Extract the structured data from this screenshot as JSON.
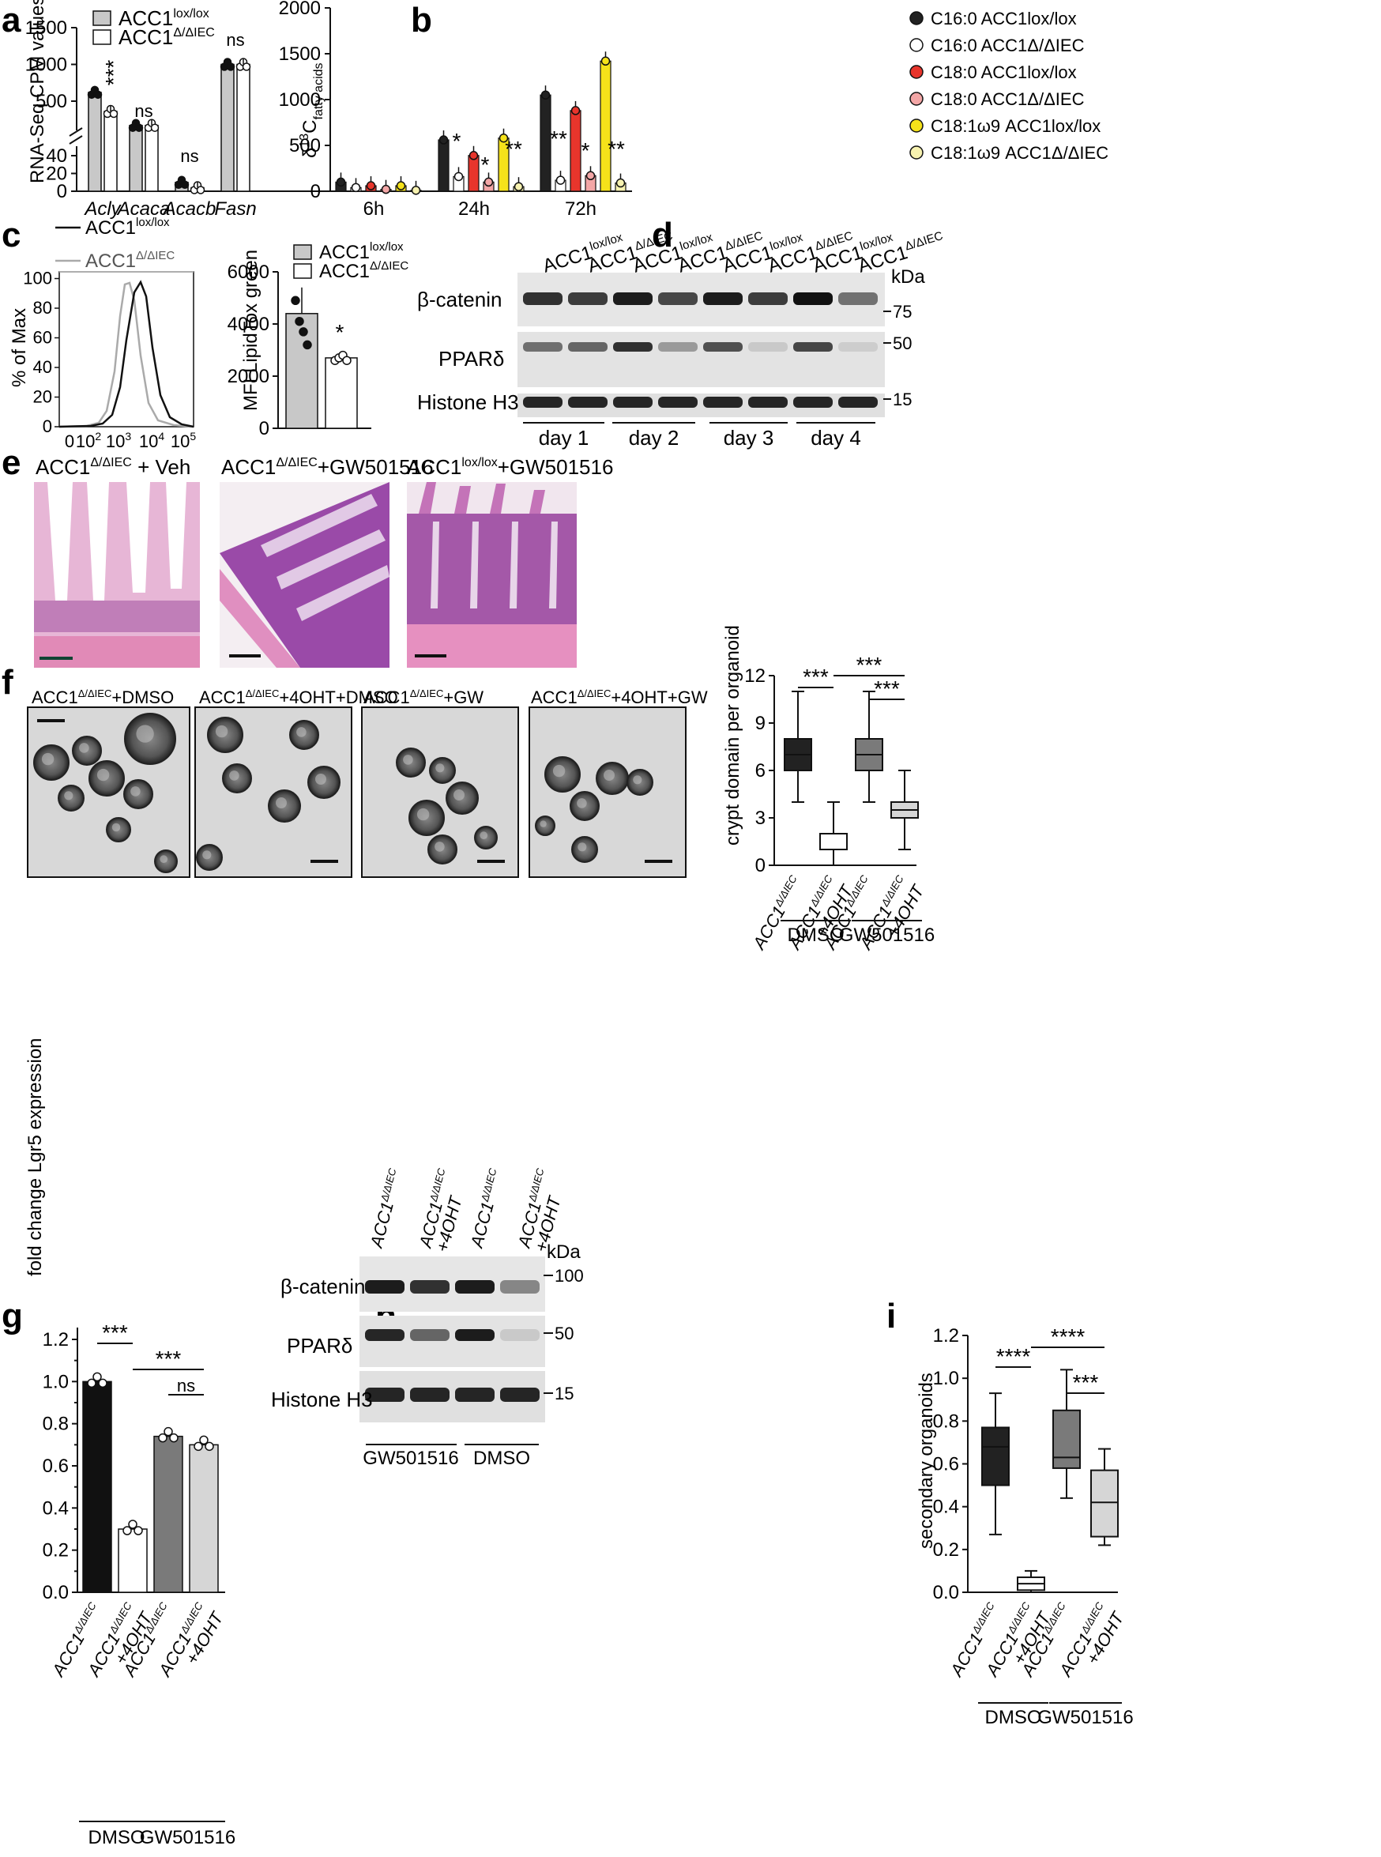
{
  "panels": {
    "a": "a",
    "b": "b",
    "c": "c",
    "d": "d",
    "e": "e",
    "f": "f",
    "g": "g",
    "h": "h",
    "i": "i"
  },
  "colors": {
    "gray": "#c8c8c8",
    "darkgray": "#7a7a7a",
    "black": "#1a1a1a",
    "red": "#e8352c",
    "pink": "#f3a6a6",
    "yellow": "#f5e21a",
    "lightyellow": "#f7f2b0",
    "he_pink": "#d87ab5",
    "he_purple": "#6a2a8c",
    "brightfield": "#d8d8d8"
  },
  "legend_a": {
    "lox": {
      "base": "ACC1",
      "sup": "lox/lox"
    },
    "del": {
      "base": "ACC1",
      "sup": "Δ/ΔIEC"
    }
  },
  "chart_data": [
    {
      "id": "a",
      "type": "bar",
      "ylabel": "RNA-Seq CPM values",
      "categories": [
        "Acly",
        "Acaca",
        "Acacb",
        "Fasn"
      ],
      "series": [
        {
          "name": "ACC1lox/lox",
          "values": [
            620,
            170,
            10,
            1000
          ]
        },
        {
          "name": "ACC1Δ/ΔIEC",
          "values": [
            360,
            170,
            4,
            1000
          ]
        }
      ],
      "y_ticks_upper": [
        "500",
        "1000",
        "1500"
      ],
      "y_ticks_lower": [
        "0",
        "20",
        "40"
      ],
      "annotations": [
        "***",
        "ns",
        "ns",
        "ns"
      ]
    },
    {
      "id": "b",
      "type": "bar",
      "ylabel": "δ13C fatty acids",
      "categories": [
        "6h",
        "24h",
        "72h"
      ],
      "series": [
        {
          "name": "C16:0 ACC1lox/lox",
          "values": [
            100,
            560,
            1050
          ]
        },
        {
          "name": "C16:0 ACC1Δ/ΔIEC",
          "values": [
            40,
            160,
            120
          ]
        },
        {
          "name": "C18:0 ACC1lox/lox",
          "values": [
            60,
            390,
            880
          ]
        },
        {
          "name": "C18:0 ACC1Δ/ΔIEC",
          "values": [
            20,
            100,
            170
          ]
        },
        {
          "name": "C18:1ω9 ACC1lox/lox",
          "values": [
            60,
            580,
            1420
          ]
        },
        {
          "name": "C18:1ω9 ACC1Δ/ΔIEC",
          "values": [
            10,
            50,
            90
          ]
        }
      ],
      "y_ticks": [
        "0",
        "500",
        "1000",
        "1500",
        "2000"
      ],
      "ylim": [
        0,
        2000
      ],
      "annotations_24h": [
        "*",
        "*",
        "**"
      ],
      "annotations_72h": [
        "**",
        "*",
        "**"
      ]
    },
    {
      "id": "c_right",
      "type": "bar",
      "ylabel": "MFI LipidTox green",
      "series": [
        {
          "name": "ACC1lox/lox",
          "values": [
            4400
          ]
        },
        {
          "name": "ACC1Δ/ΔIEC",
          "values": [
            2700
          ]
        }
      ],
      "y_ticks": [
        "0",
        "2000",
        "4000",
        "6000"
      ],
      "ylim": [
        0,
        6000
      ],
      "annotation": "*"
    },
    {
      "id": "f_right",
      "type": "box",
      "ylabel": "crypt domain per organoid",
      "categories": [
        "ACC1Δ/ΔIEC",
        "ACC1Δ/ΔIEC +4OHT",
        "ACC1Δ/ΔIEC",
        "ACC1Δ/ΔIEC +4OHT"
      ],
      "boxes": [
        {
          "min": 4,
          "q1": 6,
          "median": 7,
          "q3": 8,
          "max": 11
        },
        {
          "min": 0,
          "q1": 1,
          "median": 1,
          "q3": 2,
          "max": 4
        },
        {
          "min": 4,
          "q1": 6,
          "median": 7,
          "q3": 8,
          "max": 11
        },
        {
          "min": 1,
          "q1": 3,
          "median": 3.5,
          "q3": 4,
          "max": 6
        }
      ],
      "y_ticks": [
        "0",
        "3",
        "6",
        "9",
        "12"
      ],
      "ylim": [
        0,
        12
      ],
      "groups": [
        "DMSO",
        "GW501516"
      ],
      "annotations": [
        "***",
        "***",
        "***"
      ]
    },
    {
      "id": "g",
      "type": "bar",
      "ylabel": "fold change Lgr5 expression",
      "categories": [
        "ACC1Δ/ΔIEC",
        "ACC1Δ/ΔIEC +4OHT",
        "ACC1Δ/ΔIEC",
        "ACC1Δ/ΔIEC +4OHT"
      ],
      "values": [
        1.0,
        0.3,
        0.74,
        0.7
      ],
      "y_ticks": [
        "0.0",
        "0.1",
        "0.2",
        "0.3",
        "0.4",
        "0.5",
        "0.6",
        "0.7",
        "0.8",
        "0.9",
        "1.0",
        "1.1",
        "1.2"
      ],
      "ylim": [
        0,
        1.2
      ],
      "groups": [
        "DMSO",
        "GW501516"
      ],
      "annotations": [
        "***",
        "***",
        "ns"
      ]
    },
    {
      "id": "i",
      "type": "box",
      "ylabel": "secondary organoids",
      "categories": [
        "ACC1Δ/ΔIEC",
        "ACC1Δ/ΔIEC +4OHT",
        "ACC1Δ/ΔIEC",
        "ACC1Δ/ΔIEC +4OHT"
      ],
      "boxes": [
        {
          "min": 0.27,
          "q1": 0.5,
          "median": 0.68,
          "q3": 0.77,
          "max": 0.93
        },
        {
          "min": 0.0,
          "q1": 0.01,
          "median": 0.04,
          "q3": 0.07,
          "max": 0.1
        },
        {
          "min": 0.44,
          "q1": 0.58,
          "median": 0.63,
          "q3": 0.85,
          "max": 1.04
        },
        {
          "min": 0.22,
          "q1": 0.26,
          "median": 0.42,
          "q3": 0.57,
          "max": 0.67
        }
      ],
      "y_ticks": [
        "0.0",
        "0.2",
        "0.4",
        "0.6",
        "0.8",
        "1.0",
        "1.2"
      ],
      "ylim": [
        0,
        1.2
      ],
      "groups": [
        "DMSO",
        "GW501516"
      ],
      "annotations": [
        "****",
        "****",
        "***"
      ]
    }
  ],
  "panel_c_flow": {
    "ylabel": "% of Max",
    "y_ticks": [
      "0",
      "20",
      "40",
      "60",
      "80",
      "100"
    ],
    "x_ticks": [
      "0",
      "10",
      "10",
      "10",
      "10"
    ],
    "x_exps": [
      "",
      "2",
      "3",
      "4",
      "5"
    ],
    "legend": [
      {
        "base": "ACC1",
        "sup": "lox/lox"
      },
      {
        "base": "ACC1",
        "sup": "Δ/ΔIEC"
      }
    ]
  },
  "panel_d": {
    "lanes": [
      "ACC1",
      "ACC1",
      "ACC1",
      "ACC1",
      "ACC1",
      "ACC1",
      "ACC1",
      "ACC1"
    ],
    "lane_sups": [
      "lox/lox",
      "Δ/ΔIEC",
      "lox/lox",
      "Δ/ΔIEC",
      "lox/lox",
      "Δ/ΔIEC",
      "lox/lox",
      "Δ/ΔIEC"
    ],
    "bands": [
      "β-catenin",
      "PPARδ",
      "Histone H3"
    ],
    "kda_label": "kDa",
    "markers": [
      "75",
      "50",
      "15"
    ],
    "days": [
      "day 1",
      "day 2",
      "day 3",
      "day 4"
    ]
  },
  "panel_e": {
    "titles": [
      {
        "base": "ACC1",
        "sup": "Δ/ΔIEC",
        "rest": " + Veh"
      },
      {
        "base": "ACC1",
        "sup": "Δ/ΔIEC",
        "rest": "+GW501516"
      },
      {
        "base": "ACC1",
        "sup": "lox/lox",
        "rest": "+GW501516"
      }
    ]
  },
  "panel_f": {
    "titles": [
      {
        "base": "ACC1",
        "sup": "Δ/ΔIEC",
        "rest": "+DMSO"
      },
      {
        "base": "ACC1",
        "sup": "Δ/ΔIEC",
        "rest": "+4OHT+DMSO"
      },
      {
        "base": "ACC1",
        "sup": "Δ/ΔIEC",
        "rest": "+GW"
      },
      {
        "base": "ACC1",
        "sup": "Δ/ΔIEC",
        "rest": "+4OHT+GW"
      }
    ]
  },
  "panel_h": {
    "lanes": [
      "ACC1Δ/ΔIEC",
      "ACC1Δ/ΔIEC +4OHT",
      "ACC1Δ/ΔIEC",
      "ACC1Δ/ΔIEC +4OHT"
    ],
    "bands": [
      "β-catenin",
      "PPARδ",
      "Histone H3"
    ],
    "kda_label": "kDa",
    "markers": [
      "100",
      "50",
      "15"
    ],
    "groups": [
      "GW501516",
      "DMSO"
    ]
  },
  "x_labels": {
    "lgr5_a": "ACC1",
    "sup": "Δ/ΔIEC",
    "ohtext": "+4OHT"
  }
}
